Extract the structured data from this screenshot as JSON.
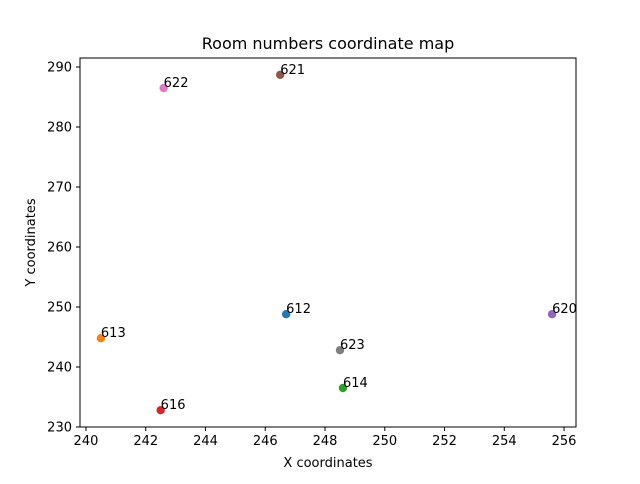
{
  "chart_data": {
    "type": "scatter",
    "title": "Room numbers coordinate map",
    "xlabel": "X coordinates",
    "ylabel": "Y coordinates",
    "xlim": [
      239.8,
      256.4
    ],
    "ylim": [
      230,
      291.5
    ],
    "xticks": [
      240,
      242,
      244,
      246,
      248,
      250,
      252,
      254,
      256
    ],
    "yticks": [
      230,
      240,
      250,
      260,
      270,
      280,
      290
    ],
    "grid": false,
    "points": [
      {
        "label": "612",
        "x": 246.7,
        "y": 248.8,
        "color": "#1f77b4"
      },
      {
        "label": "613",
        "x": 240.5,
        "y": 244.8,
        "color": "#ff7f0e"
      },
      {
        "label": "614",
        "x": 248.6,
        "y": 236.5,
        "color": "#2ca02c"
      },
      {
        "label": "616",
        "x": 242.5,
        "y": 232.8,
        "color": "#d62728"
      },
      {
        "label": "620",
        "x": 255.6,
        "y": 248.8,
        "color": "#9467bd"
      },
      {
        "label": "621",
        "x": 246.5,
        "y": 288.7,
        "color": "#8c564b"
      },
      {
        "label": "622",
        "x": 242.6,
        "y": 286.5,
        "color": "#e377c2"
      },
      {
        "label": "623",
        "x": 248.5,
        "y": 242.8,
        "color": "#7f7f7f"
      }
    ]
  }
}
